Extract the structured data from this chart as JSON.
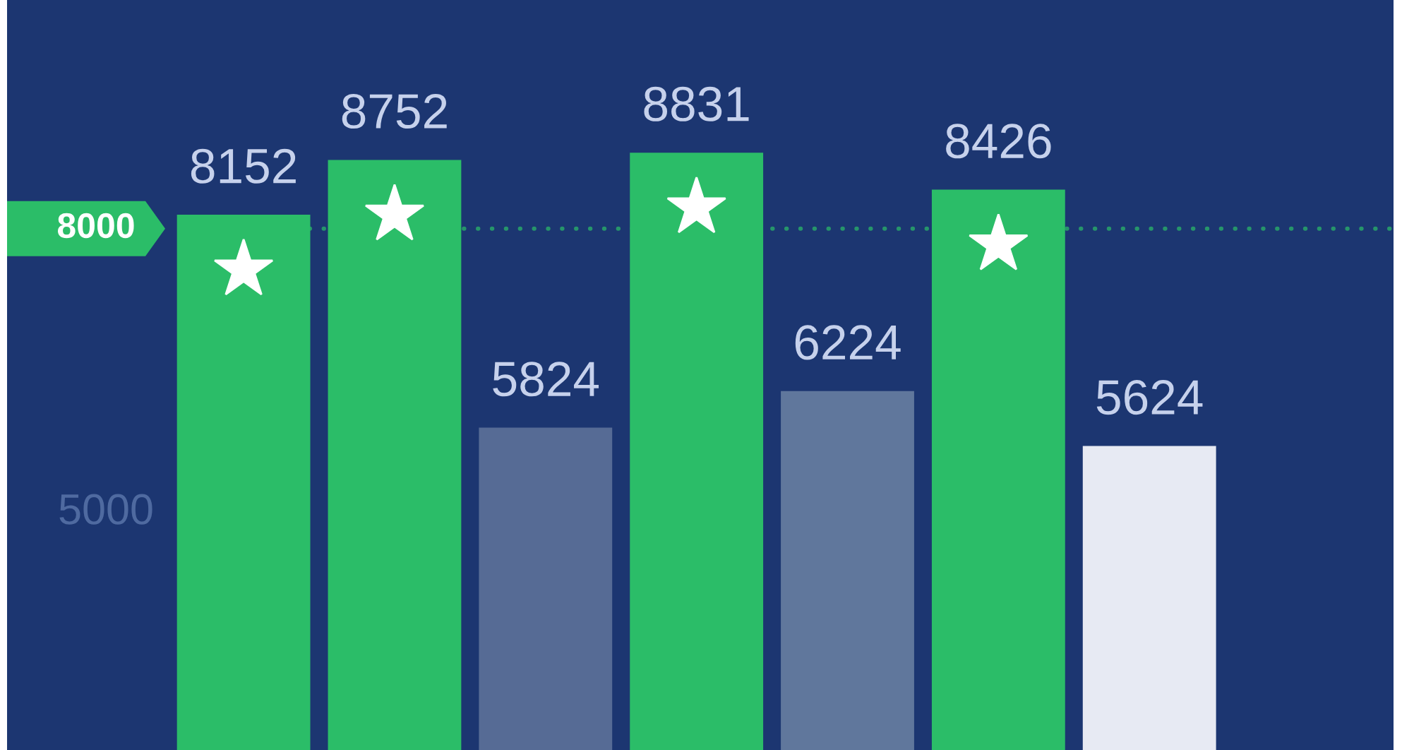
{
  "chart_data": {
    "type": "bar",
    "categories": [
      null,
      null,
      null,
      null,
      null,
      null,
      null
    ],
    "values": [
      8152,
      8752,
      5824,
      8831,
      6224,
      8426,
      5624
    ],
    "colors": [
      "#2bbd68",
      "#2bbd68",
      "#566b95",
      "#2bbd68",
      "#60779c",
      "#2bbd68",
      "#e7eaf3"
    ],
    "data_labels": true,
    "ylim": [
      2300,
      10500
    ],
    "annotations": [
      "5000"
    ],
    "ref_lines": [
      {
        "axis": "y",
        "value": 8000,
        "label": "8000",
        "color": "#2bbd68",
        "line_style": "dotted"
      }
    ]
  }
}
